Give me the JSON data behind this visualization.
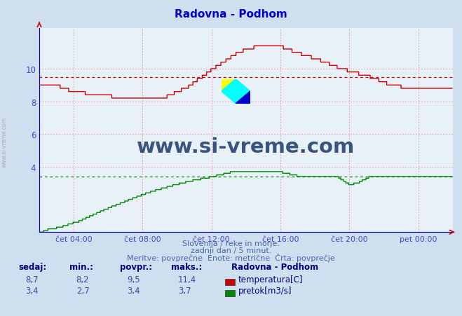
{
  "title": "Radovna - Podhom",
  "title_color": "#0000cc",
  "bg_color": "#d0dff0",
  "plot_bg_color": "#e8f0f8",
  "grid_color": "#e8a0a0",
  "xlabel_color": "#4444cc",
  "ylabel_color": "#4444cc",
  "x_tick_labels": [
    "čet 04:00",
    "čet 08:00",
    "čet 12:00",
    "čet 16:00",
    "čet 20:00",
    "pet 00:00"
  ],
  "x_tick_positions": [
    48,
    144,
    240,
    336,
    432,
    528
  ],
  "y_ticks": [
    4,
    6,
    8,
    10
  ],
  "ylim": [
    0,
    12.5
  ],
  "xlim": [
    0,
    576
  ],
  "footer_line1": "Slovenija / reke in morje.",
  "footer_line2": "zadnji dan / 5 minut.",
  "footer_line3": "Meritve: povprečne  Enote: metrične  Črta: povprečje",
  "footer_color": "#4466aa",
  "watermark_text": "www.si-vreme.com",
  "watermark_color": "#1a3a6a",
  "temp_color": "#cc0000",
  "flow_color": "#008800",
  "avg_temp": 9.5,
  "avg_flow": 3.4,
  "stats_headers": [
    "sedaj:",
    "min.:",
    "povpr.:",
    "maks.:"
  ],
  "stats_temp": [
    "8,7",
    "8,2",
    "9,5",
    "11,4"
  ],
  "stats_flow": [
    "3,4",
    "2,7",
    "3,4",
    "3,7"
  ],
  "legend_title": "Radovna - Podhom",
  "legend_temp_label": "temperatura[C]",
  "legend_flow_label": "pretok[m3/s]"
}
